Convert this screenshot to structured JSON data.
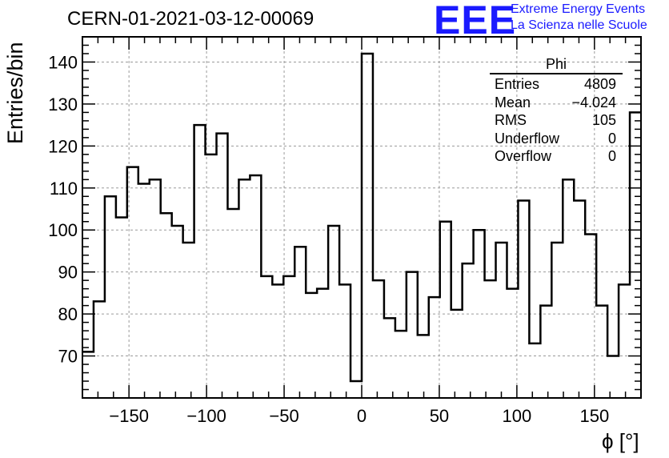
{
  "header": {
    "title": "CERN-01-2021-03-12-00069",
    "logo": "EEE",
    "logo_line1": "Extreme Energy Events",
    "logo_line2": "La Scienza nelle Scuole"
  },
  "stats_box": {
    "title": "Phi",
    "rows": [
      {
        "label": "Entries",
        "value": "4809"
      },
      {
        "label": "Mean",
        "value": "−4.024"
      },
      {
        "label": "RMS",
        "value": "105"
      },
      {
        "label": "Underflow",
        "value": "0"
      },
      {
        "label": "Overflow",
        "value": "0"
      }
    ]
  },
  "chart_data": {
    "type": "histogram",
    "title": "CERN-01-2021-03-12-00069",
    "xlabel": "ϕ [°]",
    "ylabel": "Entries/bin",
    "xlim": [
      -180,
      180
    ],
    "ylim": [
      60,
      146
    ],
    "grid": true,
    "legend": "none",
    "bin_width": 7.2,
    "x_ticks": [
      -150,
      -100,
      -50,
      0,
      50,
      100,
      150
    ],
    "x_tick_labels": [
      "−150",
      "−100",
      "−50",
      "0",
      "50",
      "100",
      "150"
    ],
    "y_ticks": [
      70,
      80,
      90,
      100,
      110,
      120,
      130,
      140
    ],
    "y_tick_labels": [
      "70",
      "80",
      "90",
      "100",
      "110",
      "120",
      "130",
      "140"
    ],
    "values": [
      71,
      83,
      108,
      103,
      115,
      111,
      112,
      104,
      101,
      97,
      125,
      118,
      123,
      105,
      112,
      113,
      89,
      87,
      89,
      96,
      85,
      86,
      101,
      87,
      64,
      142,
      88,
      79,
      76,
      90,
      75,
      84,
      102,
      81,
      92,
      100,
      88,
      97,
      86,
      107,
      73,
      82,
      97,
      112,
      107,
      99,
      82,
      70,
      87,
      128
    ],
    "line_color": "#000000",
    "grid_color": "#9a9a9a"
  }
}
